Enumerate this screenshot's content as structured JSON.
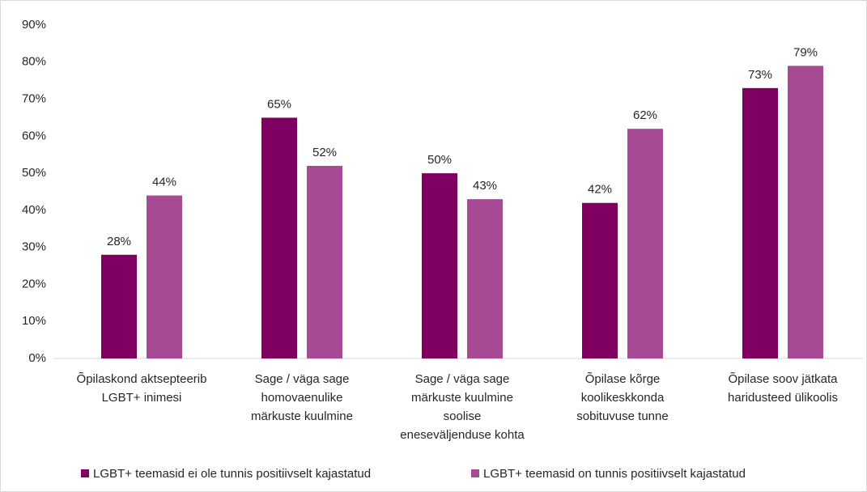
{
  "chart_data": {
    "type": "bar",
    "categories": [
      [
        "Õpilaskond aktsepteerib",
        "LGBT+ inimesi"
      ],
      [
        "Sage / väga sage",
        "homovaenulike",
        "märkuste kuulmine"
      ],
      [
        "Sage / väga sage",
        "märkuste kuulmine",
        "soolise",
        "eneseväljenduse kohta"
      ],
      [
        "Õpilase kõrge",
        "koolikeskkonda",
        "sobituvuse tunne"
      ],
      [
        "Õpilase soov jätkata",
        "haridusteed ülikoolis"
      ]
    ],
    "series": [
      {
        "name": "LGBT+ teemasid ei ole tunnis positiivselt kajastatud",
        "color": "#7f0061",
        "values": [
          28,
          65,
          50,
          42,
          73
        ],
        "value_labels": [
          "28%",
          "65%",
          "50%",
          "42%",
          "73%"
        ]
      },
      {
        "name": "LGBT+ teemasid on tunnis positiivselt kajastatud",
        "color": "#a64b93",
        "values": [
          44,
          52,
          43,
          62,
          79
        ],
        "value_labels": [
          "44%",
          "52%",
          "43%",
          "62%",
          "79%"
        ]
      }
    ],
    "ylim": [
      0,
      90
    ],
    "yticks": [
      {
        "value": 0,
        "label": "0%"
      },
      {
        "value": 10,
        "label": "10%"
      },
      {
        "value": 20,
        "label": "20%"
      },
      {
        "value": 30,
        "label": "30%"
      },
      {
        "value": 40,
        "label": "40%"
      },
      {
        "value": 50,
        "label": "50%"
      },
      {
        "value": 60,
        "label": "60%"
      },
      {
        "value": 70,
        "label": "70%"
      },
      {
        "value": 80,
        "label": "80%"
      },
      {
        "value": 90,
        "label": "90%"
      }
    ],
    "grid": false,
    "legend": "bottom"
  }
}
